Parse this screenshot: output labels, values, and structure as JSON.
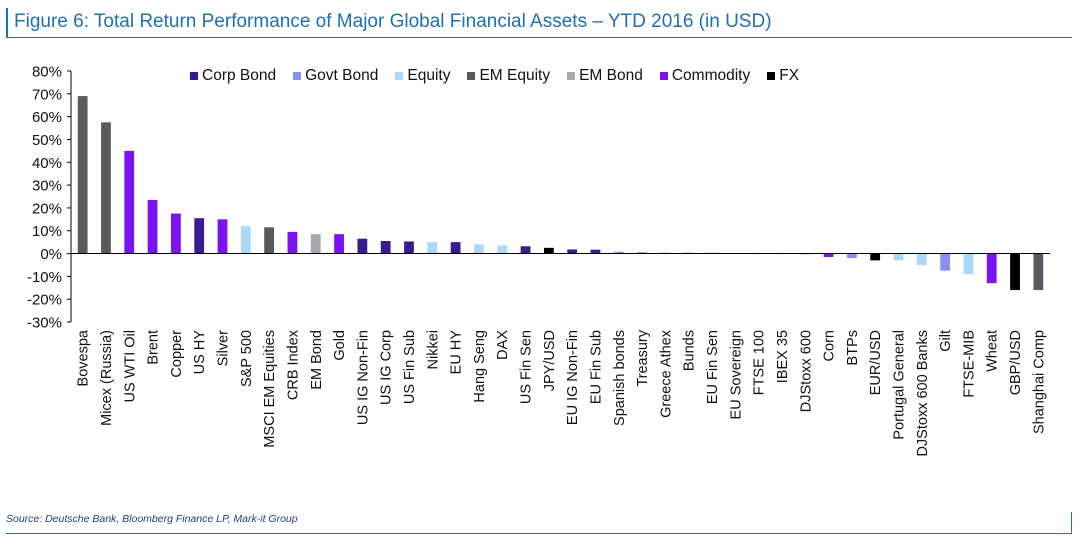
{
  "title": "Figure 6: Total Return Performance of Major Global Financial Assets – YTD 2016 (in USD)",
  "source": "Source: Deutsche Bank, Bloomberg Finance LP, Mark-it Group",
  "chart_data": {
    "type": "bar",
    "title": "Figure 6: Total Return Performance of Major Global Financial Assets – YTD 2016 (in USD)",
    "xlabel": "",
    "ylabel": "",
    "ylim": [
      -30,
      80
    ],
    "yticks": [
      "80%",
      "70%",
      "60%",
      "50%",
      "40%",
      "30%",
      "20%",
      "10%",
      "0%",
      "-10%",
      "-20%",
      "-30%"
    ],
    "legend_position": "top",
    "grid": false,
    "legend": [
      {
        "name": "Corp Bond",
        "color": "#3b1a8f"
      },
      {
        "name": "Govt Bond",
        "color": "#8c8ff2"
      },
      {
        "name": "Equity",
        "color": "#a9d8f8"
      },
      {
        "name": "EM Equity",
        "color": "#595961"
      },
      {
        "name": "EM Bond",
        "color": "#a6a6ad"
      },
      {
        "name": "Commodity",
        "color": "#7a12f2"
      },
      {
        "name": "FX",
        "color": "#000000"
      }
    ],
    "categories": [
      "Bovespa",
      "Micex (Russia)",
      "US WTI Oil",
      "Brent",
      "Copper",
      "US HY",
      "Silver",
      "S&P 500",
      "MSCI EM Equities",
      "CRB Index",
      "EM Bond",
      "Gold",
      "US IG Non-Fin",
      "US IG Corp",
      "US Fin Sub",
      "Nikkei",
      "EU HY",
      "Hang Seng",
      "DAX",
      "US Fin Sen",
      "JPY/USD",
      "EU IG Non-Fin",
      "EU Fin Sub",
      "Spanish bonds",
      "Treasury",
      "Greece Athex",
      "Bunds",
      "EU Fin Sen",
      "EU Sovereign",
      "FTSE 100",
      "IBEX 35",
      "DJStoxx 600",
      "Corn",
      "BTPs",
      "EUR/USD",
      "Portugal General",
      "DJStoxx 600 Banks",
      "Gilt",
      "FTSE-MIB",
      "Wheat",
      "GBP/USD",
      "Shanghai Comp"
    ],
    "values": [
      69,
      57.5,
      45,
      23.5,
      17.5,
      15.5,
      15,
      12,
      11.5,
      9.5,
      8.5,
      8.5,
      6.5,
      5.5,
      5.3,
      5,
      5,
      4,
      3.5,
      3.2,
      2.5,
      1.8,
      1.7,
      0.8,
      0.6,
      0.5,
      0.4,
      0.3,
      0.2,
      0.1,
      0.1,
      -0.5,
      -1.5,
      -2,
      -3,
      -3,
      -5,
      -7.5,
      -9,
      -13,
      -16,
      -16
    ],
    "asset_classes": [
      "EM Equity",
      "EM Equity",
      "Commodity",
      "Commodity",
      "Commodity",
      "Corp Bond",
      "Commodity",
      "Equity",
      "EM Equity",
      "Commodity",
      "EM Bond",
      "Commodity",
      "Corp Bond",
      "Corp Bond",
      "Corp Bond",
      "Equity",
      "Corp Bond",
      "Equity",
      "Equity",
      "Corp Bond",
      "FX",
      "Corp Bond",
      "Corp Bond",
      "Govt Bond",
      "Govt Bond",
      "Equity",
      "Govt Bond",
      "Corp Bond",
      "Govt Bond",
      "Equity",
      "Equity",
      "Equity",
      "Commodity",
      "Govt Bond",
      "FX",
      "Equity",
      "Equity",
      "Govt Bond",
      "Equity",
      "Commodity",
      "FX",
      "EM Equity"
    ]
  }
}
